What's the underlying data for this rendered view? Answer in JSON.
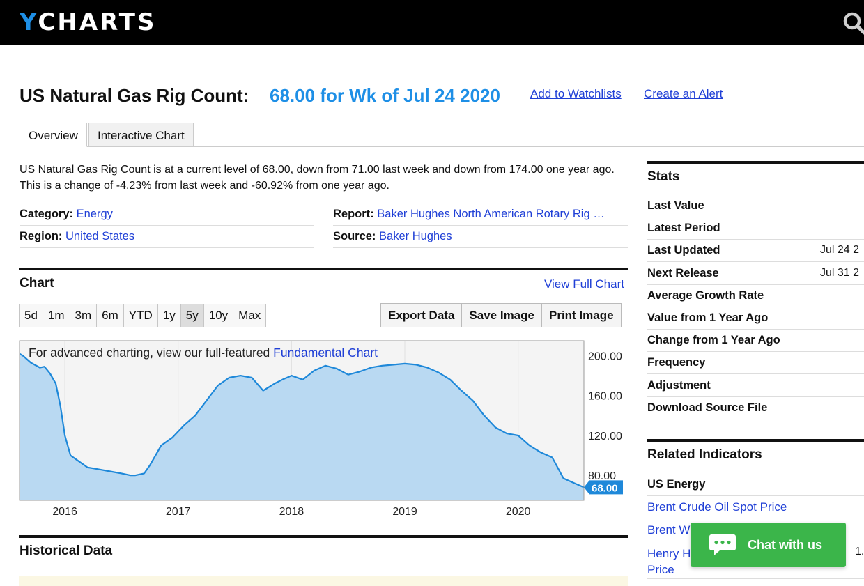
{
  "header": {
    "logo_y": "Y",
    "logo_rest": "CHARTS",
    "search_icon": "search-icon"
  },
  "page": {
    "title": "US Natural Gas Rig Count:",
    "value_text": "68.00 for Wk of Jul 24 2020",
    "add_watchlist": "Add to Watchlists",
    "create_alert": "Create an Alert"
  },
  "tabs": [
    {
      "label": "Overview",
      "active": true
    },
    {
      "label": "Interactive Chart",
      "active": false
    }
  ],
  "description": "US Natural Gas Rig Count is at a current level of 68.00, down from 71.00 last week and down from 174.00 one year ago. This is a change of -4.23% from last week and -60.92% from one year ago.",
  "meta": {
    "category_label": "Category:",
    "category_value": "Energy",
    "region_label": "Region:",
    "region_value": "United States",
    "report_label": "Report:",
    "report_value": "Baker Hughes North American Rotary Rig …",
    "source_label": "Source:",
    "source_value": "Baker Hughes"
  },
  "chart_section": {
    "title": "Chart",
    "view_full": "View Full Chart",
    "ranges": [
      "5d",
      "1m",
      "3m",
      "6m",
      "YTD",
      "1y",
      "5y",
      "10y",
      "Max"
    ],
    "selected_range": "5y",
    "actions": [
      "Export Data",
      "Save Image",
      "Print Image"
    ],
    "note_prefix": "For advanced charting, view our full-featured",
    "note_link": "Fundamental Chart"
  },
  "chart_data": {
    "type": "area",
    "title": "",
    "xlabel": "",
    "ylabel": "",
    "x_ticks": [
      "2016",
      "2017",
      "2018",
      "2019",
      "2020"
    ],
    "y_ticks": [
      "200.00",
      "160.00",
      "120.00",
      "80.00"
    ],
    "ylim": [
      55,
      215
    ],
    "xlim": [
      2015.6,
      2020.58
    ],
    "last_value_label": "68.00",
    "line_color": "#1e88d9",
    "fill_color": "#b9d9f2",
    "series": [
      {
        "name": "",
        "x": [
          2015.6,
          2015.63,
          2015.7,
          2015.78,
          2015.82,
          2015.87,
          2015.92,
          2015.96,
          2016.0,
          2016.05,
          2016.1,
          2016.2,
          2016.3,
          2016.4,
          2016.5,
          2016.58,
          2016.62,
          2016.7,
          2016.75,
          2016.8,
          2016.85,
          2016.95,
          2017.05,
          2017.15,
          2017.25,
          2017.35,
          2017.45,
          2017.55,
          2017.65,
          2017.75,
          2017.85,
          2017.92,
          2018.0,
          2018.1,
          2018.2,
          2018.3,
          2018.4,
          2018.5,
          2018.6,
          2018.7,
          2018.8,
          2018.9,
          2019.0,
          2019.1,
          2019.2,
          2019.3,
          2019.4,
          2019.5,
          2019.6,
          2019.7,
          2019.8,
          2019.9,
          2020.0,
          2020.1,
          2020.2,
          2020.3,
          2020.4,
          2020.5,
          2020.58
        ],
        "values": [
          202,
          200,
          193,
          188,
          189,
          182,
          172,
          150,
          120,
          100,
          96,
          88,
          86,
          84,
          82,
          80,
          80,
          82,
          90,
          100,
          110,
          118,
          130,
          140,
          155,
          170,
          178,
          180,
          178,
          165,
          172,
          176,
          180,
          176,
          185,
          190,
          187,
          181,
          184,
          188,
          190,
          191,
          192,
          191,
          188,
          183,
          176,
          165,
          155,
          140,
          128,
          122,
          120,
          110,
          103,
          98,
          77,
          72,
          68
        ]
      }
    ]
  },
  "historical": {
    "title": "Historical Data"
  },
  "stats": {
    "title": "Stats",
    "rows": [
      {
        "label": "Last Value",
        "value": ""
      },
      {
        "label": "Latest Period",
        "value": ""
      },
      {
        "label": "Last Updated",
        "value": "Jul 24 2"
      },
      {
        "label": "Next Release",
        "value": "Jul 31 2"
      },
      {
        "label": "Average Growth Rate",
        "value": ""
      },
      {
        "label": "Value from 1 Year Ago",
        "value": ""
      },
      {
        "label": "Change from 1 Year Ago",
        "value": ""
      },
      {
        "label": "Frequency",
        "value": ""
      },
      {
        "label": "Adjustment",
        "value": ""
      },
      {
        "label": "Download Source File",
        "value": ""
      }
    ]
  },
  "related": {
    "title": "Related Indicators",
    "group": "US Energy",
    "items": [
      "Brent Crude Oil Spot Price",
      "Brent W",
      "Henry H",
      "Price"
    ],
    "partial_value": "1."
  },
  "chat": {
    "label": "Chat with us",
    "icon": "chat-bubble-icon"
  }
}
